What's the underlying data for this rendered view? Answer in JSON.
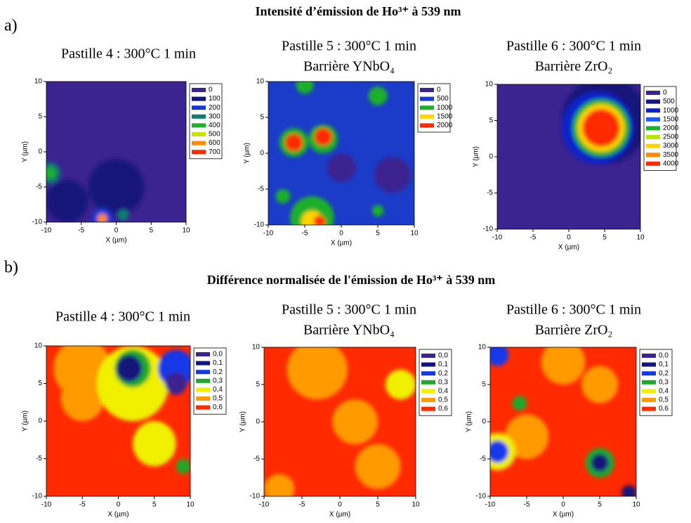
{
  "sections": [
    {
      "label": "a)",
      "title": "Intensité d’émission de Ho³⁺ à 539 nm"
    },
    {
      "label": "b)",
      "title": "Différence normalisée de l'émission de Ho³⁺ à 539 nm"
    }
  ],
  "chart_data": [
    {
      "type": "contour",
      "title": [
        "Pastille 4 : 300°C 1 min"
      ],
      "xlabel": "X (µm)",
      "ylabel": "Y (µm)",
      "xlim": [
        -10,
        10
      ],
      "ylim": [
        -10,
        10
      ],
      "xticks": [
        -10,
        -5,
        0,
        5,
        10
      ],
      "yticks": [
        -10,
        -5,
        0,
        5,
        10
      ],
      "levels": [
        0,
        100,
        200,
        300,
        400,
        500,
        600,
        700
      ],
      "level_colors": [
        "#3b2390",
        "#14147a",
        "#1238d8",
        "#0c7f6e",
        "#1fb02a",
        "#c8e400",
        "#ff8a00",
        "#ff2a00"
      ],
      "base": 0,
      "spots": [
        {
          "x": -7,
          "y": -7,
          "r": 3,
          "value": 100
        },
        {
          "x": 0,
          "y": -5,
          "r": 4,
          "value": 100
        },
        {
          "x": -9.5,
          "y": -3,
          "r": 1.5,
          "value": 300
        },
        {
          "x": -9.5,
          "y": -3,
          "r": 0.8,
          "value": 400
        },
        {
          "x": -2,
          "y": -9.5,
          "r": 1.5,
          "value": 200
        },
        {
          "x": -2,
          "y": -9.5,
          "r": 0.7,
          "value": 600
        },
        {
          "x": 1,
          "y": -9,
          "r": 0.8,
          "value": 300
        }
      ]
    },
    {
      "type": "contour",
      "title": [
        "Pastille 5 : 300°C 1 min",
        "Barrière YNbO₄"
      ],
      "xlabel": "X (µm)",
      "ylabel": "Y (µm)",
      "xlim": [
        -10,
        10
      ],
      "ylim": [
        -10,
        10
      ],
      "xticks": [
        -10,
        -5,
        0,
        5,
        10
      ],
      "yticks": [
        -10,
        -5,
        0,
        5,
        10
      ],
      "levels": [
        0,
        500,
        1000,
        1500,
        2000
      ],
      "level_colors": [
        "#3b2390",
        "#1a3cc8",
        "#1fb02a",
        "#ffd400",
        "#ff2a00"
      ],
      "base": 500,
      "spots": [
        {
          "x": 7,
          "y": -3,
          "r": 2.5,
          "value": 0
        },
        {
          "x": 0,
          "y": -2,
          "r": 2,
          "value": 0
        },
        {
          "x": -4,
          "y": -9,
          "r": 3,
          "value": 1000
        },
        {
          "x": -4,
          "y": -9.5,
          "r": 1.5,
          "value": 1500
        },
        {
          "x": -3,
          "y": -9.5,
          "r": 0.8,
          "value": 2000
        },
        {
          "x": -6.5,
          "y": 1.5,
          "r": 2,
          "value": 1000
        },
        {
          "x": -6.5,
          "y": 1.5,
          "r": 1.2,
          "value": 2000
        },
        {
          "x": -2.5,
          "y": 2,
          "r": 2,
          "value": 1000
        },
        {
          "x": -2.5,
          "y": 2.3,
          "r": 1.2,
          "value": 2000
        },
        {
          "x": -5,
          "y": 9.5,
          "r": 1.2,
          "value": 1000
        },
        {
          "x": 5,
          "y": 8,
          "r": 1.3,
          "value": 1000
        },
        {
          "x": 5,
          "y": -8,
          "r": 0.8,
          "value": 1000
        },
        {
          "x": -8,
          "y": -6,
          "r": 1,
          "value": 1000
        }
      ]
    },
    {
      "type": "contour",
      "title": [
        "Pastille 6 : 300°C 1 min",
        "Barrière ZrO₂"
      ],
      "xlabel": "X (µm)",
      "ylabel": "Y (µm)",
      "xlim": [
        -10,
        10
      ],
      "ylim": [
        -10,
        10
      ],
      "xticks": [
        -10,
        -5,
        0,
        5,
        10
      ],
      "yticks": [
        -10,
        -5,
        0,
        5,
        10
      ],
      "levels": [
        0,
        500,
        1000,
        1500,
        2000,
        2500,
        3000,
        3500,
        4000
      ],
      "level_colors": [
        "#3b2390",
        "#14147a",
        "#1020c8",
        "#1a5cff",
        "#1fb02a",
        "#b8e800",
        "#ffd400",
        "#ff8a00",
        "#ff2a00"
      ],
      "base": 0,
      "spots": [
        {
          "x": 5,
          "y": 5,
          "r": 6,
          "value": 500
        },
        {
          "x": 4,
          "y": 4,
          "r": 5,
          "value": 1000
        },
        {
          "x": 4.5,
          "y": 4,
          "r": 4,
          "value": 2000
        },
        {
          "x": 4.5,
          "y": 4,
          "r": 3.3,
          "value": 3000
        },
        {
          "x": 4.5,
          "y": 4,
          "r": 2.6,
          "value": 4000
        }
      ]
    },
    {
      "type": "contour",
      "title": [
        "Pastille 4 : 300°C 1 min"
      ],
      "xlabel": "X (µm)",
      "ylabel": "Y (µm)",
      "xlim": [
        -10,
        10
      ],
      "ylim": [
        -10,
        10
      ],
      "xticks": [
        -10,
        -5,
        0,
        5,
        10
      ],
      "yticks": [
        -10,
        -5,
        0,
        5,
        10
      ],
      "levels": [
        {
          "value": 0,
          "label": "0,0"
        },
        {
          "value": 0.1,
          "label": "0,1"
        },
        {
          "value": 0.2,
          "label": "0,2"
        },
        {
          "value": 0.3,
          "label": "0,3"
        },
        {
          "value": 0.4,
          "label": "0,4"
        },
        {
          "value": 0.5,
          "label": "0,5"
        },
        {
          "value": 0.6,
          "label": "0,6"
        }
      ],
      "level_colors": [
        "#3b2390",
        "#14147a",
        "#1238e8",
        "#1fa82a",
        "#f0f000",
        "#ff9a00",
        "#ff2a00"
      ],
      "base": 0.6,
      "spots": [
        {
          "x": -5,
          "y": 7,
          "r": 4,
          "value": 0.5
        },
        {
          "x": -5,
          "y": 3,
          "r": 3,
          "value": 0.5
        },
        {
          "x": 2,
          "y": 5,
          "r": 5,
          "value": 0.4
        },
        {
          "x": 2,
          "y": 7,
          "r": 2.5,
          "value": 0.3
        },
        {
          "x": 1.5,
          "y": 7,
          "r": 1.8,
          "value": 0.1
        },
        {
          "x": 8,
          "y": 7,
          "r": 2.5,
          "value": 0.2
        },
        {
          "x": 8,
          "y": 5,
          "r": 1.5,
          "value": 0
        },
        {
          "x": 5,
          "y": -3,
          "r": 3,
          "value": 0.4
        },
        {
          "x": 9,
          "y": -6,
          "r": 1,
          "value": 0.3
        }
      ]
    },
    {
      "type": "contour",
      "title": [
        "Pastille 5 : 300°C 1 min",
        "Barrière YNbO₄"
      ],
      "xlabel": "X (µm)",
      "ylabel": "Y (µm)",
      "xlim": [
        -10,
        10
      ],
      "ylim": [
        -10,
        10
      ],
      "xticks": [
        -10,
        -5,
        0,
        5,
        10
      ],
      "yticks": [
        -10,
        -5,
        0,
        5,
        10
      ],
      "levels": [
        {
          "value": 0,
          "label": "0,0"
        },
        {
          "value": 0.1,
          "label": "0,1"
        },
        {
          "value": 0.2,
          "label": "0,2"
        },
        {
          "value": 0.3,
          "label": "0,3"
        },
        {
          "value": 0.4,
          "label": "0,4"
        },
        {
          "value": 0.5,
          "label": "0,5"
        },
        {
          "value": 0.6,
          "label": "0,6"
        }
      ],
      "level_colors": [
        "#3b2390",
        "#14147a",
        "#1238e8",
        "#1fa82a",
        "#f0f000",
        "#ff9a00",
        "#ff2a00"
      ],
      "base": 0.6,
      "spots": [
        {
          "x": -3,
          "y": 7,
          "r": 4,
          "value": 0.5
        },
        {
          "x": 2,
          "y": 0,
          "r": 3,
          "value": 0.5
        },
        {
          "x": 5,
          "y": -6,
          "r": 3,
          "value": 0.5
        },
        {
          "x": -8,
          "y": -9,
          "r": 2,
          "value": 0.5
        },
        {
          "x": 8,
          "y": 5,
          "r": 2,
          "value": 0.4
        }
      ]
    },
    {
      "type": "contour",
      "title": [
        "Pastille 6 : 300°C 1 min",
        "Barrière ZrO₂"
      ],
      "xlabel": "X (µm)",
      "ylabel": "Y (µm)",
      "xlim": [
        -10,
        10
      ],
      "ylim": [
        -10,
        10
      ],
      "xticks": [
        -10,
        -5,
        0,
        5,
        10
      ],
      "yticks": [
        -10,
        -5,
        0,
        5,
        10
      ],
      "levels": [
        {
          "value": 0,
          "label": "0,0"
        },
        {
          "value": 0.1,
          "label": "0,1"
        },
        {
          "value": 0.2,
          "label": "0,2"
        },
        {
          "value": 0.3,
          "label": "0,3"
        },
        {
          "value": 0.4,
          "label": "0,4"
        },
        {
          "value": 0.5,
          "label": "0,5"
        },
        {
          "value": 0.6,
          "label": "0,6"
        }
      ],
      "level_colors": [
        "#3b2390",
        "#14147a",
        "#1238e8",
        "#1fa82a",
        "#f0f000",
        "#ff9a00",
        "#ff2a00"
      ],
      "base": 0.6,
      "spots": [
        {
          "x": 0,
          "y": 8,
          "r": 3,
          "value": 0.5
        },
        {
          "x": -5,
          "y": -2,
          "r": 3,
          "value": 0.5
        },
        {
          "x": 5,
          "y": 5,
          "r": 2.5,
          "value": 0.5
        },
        {
          "x": -9,
          "y": -4,
          "r": 2.5,
          "value": 0.4
        },
        {
          "x": -9,
          "y": -4,
          "r": 1.5,
          "value": 0.2
        },
        {
          "x": -9,
          "y": 9,
          "r": 1.5,
          "value": 0.2
        },
        {
          "x": 5,
          "y": -5.5,
          "r": 2,
          "value": 0.3
        },
        {
          "x": 5,
          "y": -5.5,
          "r": 1.2,
          "value": 0.1
        },
        {
          "x": -6,
          "y": 2.5,
          "r": 1,
          "value": 0.3
        },
        {
          "x": 9,
          "y": -9.5,
          "r": 1,
          "value": 0.1
        }
      ]
    }
  ]
}
